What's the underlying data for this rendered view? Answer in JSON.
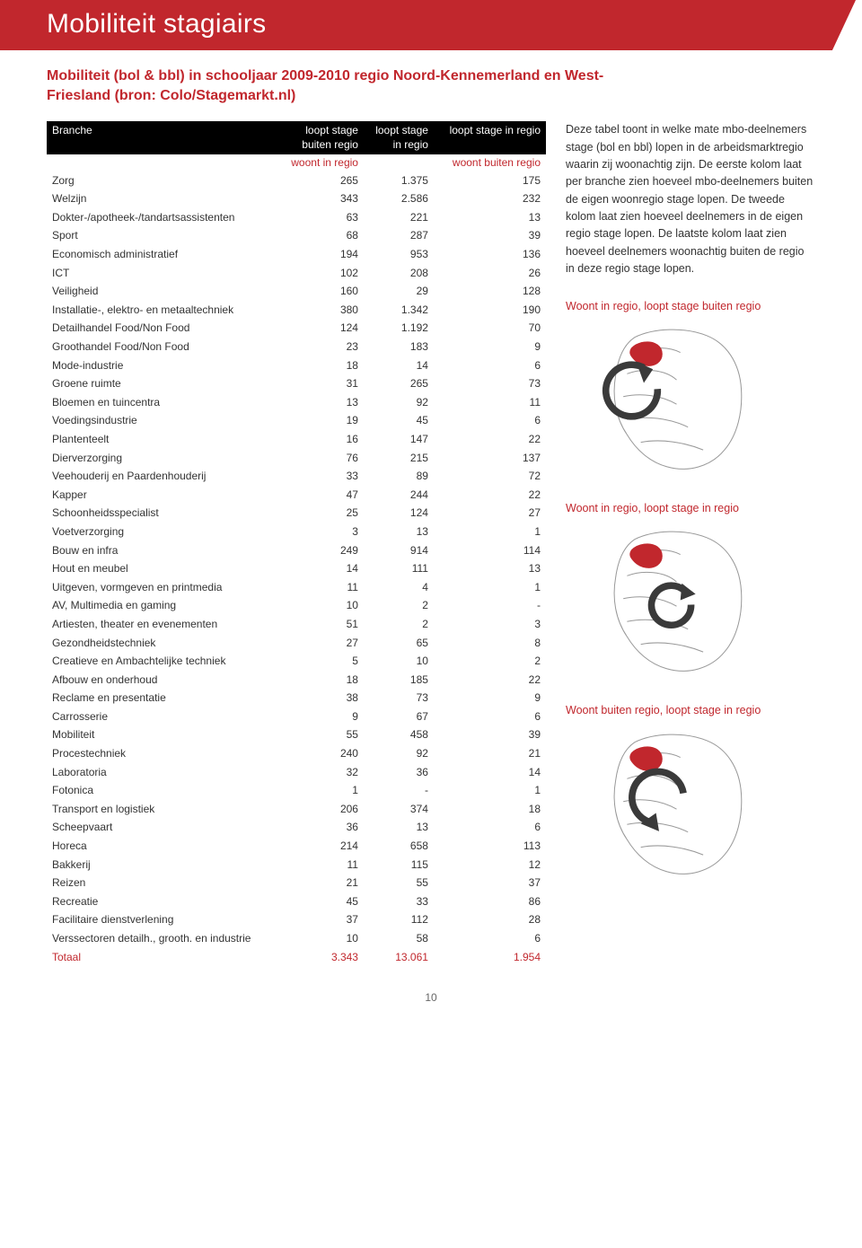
{
  "banner_title": "Mobiliteit stagiairs",
  "subtitle": "Mobiliteit (bol & bbl) in schooljaar 2009-2010 regio Noord-Kennemerland en West-Friesland (bron: Colo/Stagemarkt.nl)",
  "over_header": {
    "c1": "",
    "c2": "woont in regio",
    "c3": "",
    "c4": "woont buiten regio"
  },
  "header": {
    "c1": "Branche",
    "c2_l1": "loopt stage",
    "c2_l2": "buiten regio",
    "c3_l1": "loopt stage",
    "c3_l2": "in regio",
    "c4": "loopt stage in regio"
  },
  "rows": [
    [
      "Zorg",
      "265",
      "1.375",
      "175"
    ],
    [
      "Welzijn",
      "343",
      "2.586",
      "232"
    ],
    [
      "Dokter-/apotheek-/tandartsassistenten",
      "63",
      "221",
      "13"
    ],
    [
      "Sport",
      "68",
      "287",
      "39"
    ],
    [
      "Economisch administratief",
      "194",
      "953",
      "136"
    ],
    [
      "ICT",
      "102",
      "208",
      "26"
    ],
    [
      "Veiligheid",
      "160",
      "29",
      "128"
    ],
    [
      "Installatie-, elektro- en metaaltechniek",
      "380",
      "1.342",
      "190"
    ],
    [
      "Detailhandel Food/Non Food",
      "124",
      "1.192",
      "70"
    ],
    [
      "Groothandel Food/Non Food",
      "23",
      "183",
      "9"
    ],
    [
      "Mode-industrie",
      "18",
      "14",
      "6"
    ],
    [
      "Groene ruimte",
      "31",
      "265",
      "73"
    ],
    [
      "Bloemen en tuincentra",
      "13",
      "92",
      "11"
    ],
    [
      "Voedingsindustrie",
      "19",
      "45",
      "6"
    ],
    [
      "Plantenteelt",
      "16",
      "147",
      "22"
    ],
    [
      "Dierverzorging",
      "76",
      "215",
      "137"
    ],
    [
      "Veehouderij en Paardenhouderij",
      "33",
      "89",
      "72"
    ],
    [
      "Kapper",
      "47",
      "244",
      "22"
    ],
    [
      "Schoonheidsspecialist",
      "25",
      "124",
      "27"
    ],
    [
      "Voetverzorging",
      "3",
      "13",
      "1"
    ],
    [
      "Bouw en infra",
      "249",
      "914",
      "114"
    ],
    [
      "Hout en meubel",
      "14",
      "111",
      "13"
    ],
    [
      "Uitgeven, vormgeven en printmedia",
      "11",
      "4",
      "1"
    ],
    [
      "AV, Multimedia en gaming",
      "10",
      "2",
      "-"
    ],
    [
      "Artiesten, theater en evenementen",
      "51",
      "2",
      "3"
    ],
    [
      "Gezondheidstechniek",
      "27",
      "65",
      "8"
    ],
    [
      "Creatieve en Ambachtelijke techniek",
      "5",
      "10",
      "2"
    ],
    [
      "Afbouw en onderhoud",
      "18",
      "185",
      "22"
    ],
    [
      "Reclame en presentatie",
      "38",
      "73",
      "9"
    ],
    [
      "Carrosserie",
      "9",
      "67",
      "6"
    ],
    [
      "Mobiliteit",
      "55",
      "458",
      "39"
    ],
    [
      "Procestechniek",
      "240",
      "92",
      "21"
    ],
    [
      "Laboratoria",
      "32",
      "36",
      "14"
    ],
    [
      "Fotonica",
      "1",
      "-",
      "1"
    ],
    [
      "Transport en logistiek",
      "206",
      "374",
      "18"
    ],
    [
      "Scheepvaart",
      "36",
      "13",
      "6"
    ],
    [
      "Horeca",
      "214",
      "658",
      "113"
    ],
    [
      "Bakkerij",
      "11",
      "115",
      "12"
    ],
    [
      "Reizen",
      "21",
      "55",
      "37"
    ],
    [
      "Recreatie",
      "45",
      "33",
      "86"
    ],
    [
      "Facilitaire dienstverlening",
      "37",
      "112",
      "28"
    ],
    [
      "Verssectoren detailh., grooth. en industrie",
      "10",
      "58",
      "6"
    ],
    [
      "Totaal",
      "3.343",
      "13.061",
      "1.954"
    ]
  ],
  "side_text": "Deze tabel toont in welke mate mbo-deelnemers stage (bol en bbl) lopen in de arbeidsmarktregio waarin zij woonachtig zijn. De eerste kolom laat per branche zien hoeveel mbo-deelnemers buiten de eigen woonregio stage lopen. De tweede kolom laat zien hoeveel deelnemers in de eigen regio stage lopen. De laatste kolom laat zien hoeveel deelnemers woonachtig buiten de regio in deze regio stage lopen.",
  "maps": [
    {
      "label": "Woont in regio, loopt stage buiten regio",
      "icon": "arrow-out"
    },
    {
      "label": "Woont in regio, loopt stage in regio",
      "icon": "cycle"
    },
    {
      "label": "Woont buiten regio, loopt stage in regio",
      "icon": "arrow-in"
    }
  ],
  "page_number": "10",
  "colors": {
    "accent": "#c1272d",
    "map_stroke": "#999999",
    "map_fill": "#ffffff",
    "highlight": "#c1272d",
    "icon_fill": "#3a3a3a"
  }
}
